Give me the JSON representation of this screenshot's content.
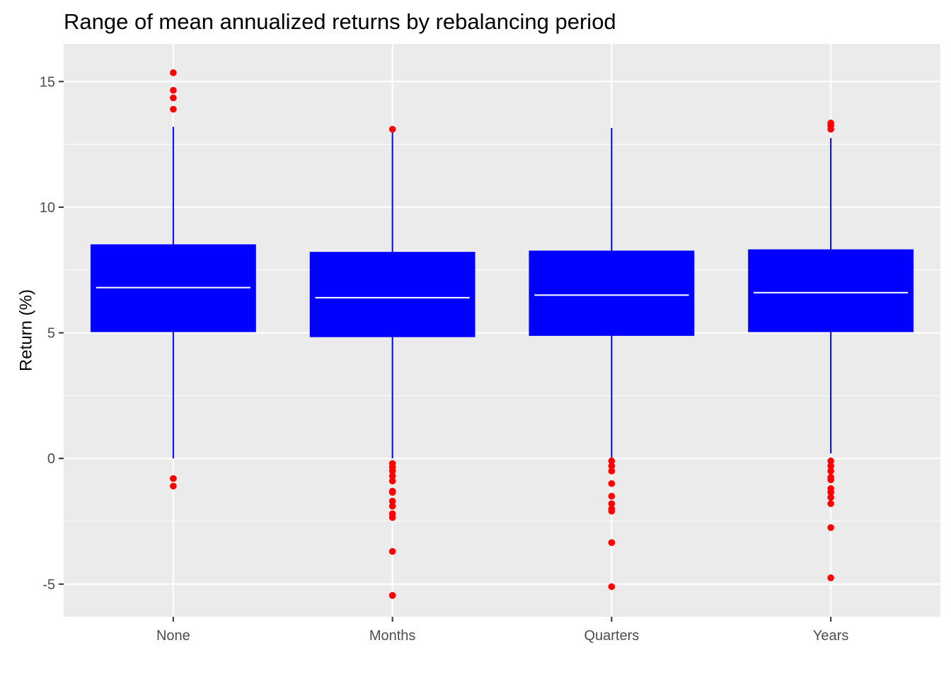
{
  "chart_data": {
    "type": "boxplot",
    "title": "Range of mean annualized returns by rebalancing period",
    "xlabel": "",
    "ylabel": "Return (%)",
    "ylim": [
      -6.3,
      16.5
    ],
    "yticks": [
      -5,
      0,
      5,
      10,
      15
    ],
    "ytick_labels": [
      "-5",
      "0",
      "5",
      "10",
      "15"
    ],
    "grid": true,
    "legend": "none",
    "colors": {
      "panel": "#ebebeb",
      "grid": "#ffffff",
      "box": "#0000ff",
      "median": "#ffffff",
      "whisker": "#0000ff",
      "outlier": "#ff0000",
      "tick": "#333333"
    },
    "categories": [
      "None",
      "Months",
      "Quarters",
      "Years"
    ],
    "boxes": [
      {
        "category": "None",
        "whisker_low": 0.0,
        "q1": 5.05,
        "median": 6.8,
        "q3": 8.5,
        "whisker_high": 13.2,
        "outliers": [
          15.35,
          14.65,
          14.35,
          13.9,
          -0.8,
          -1.1
        ]
      },
      {
        "category": "Months",
        "whisker_low": 0.0,
        "q1": 4.85,
        "median": 6.4,
        "q3": 8.2,
        "whisker_high": 13.0,
        "outliers": [
          13.1,
          -0.2,
          -0.35,
          -0.5,
          -0.7,
          -0.9,
          -1.3,
          -1.35,
          -1.7,
          -1.9,
          -2.2,
          -2.35,
          -3.7,
          -5.45
        ]
      },
      {
        "category": "Quarters",
        "whisker_low": 0.0,
        "q1": 4.9,
        "median": 6.5,
        "q3": 8.25,
        "whisker_high": 13.15,
        "outliers": [
          -0.1,
          -0.3,
          -0.5,
          -1.0,
          -1.5,
          -1.8,
          -2.0,
          -2.1,
          -3.35,
          -5.1
        ]
      },
      {
        "category": "Years",
        "whisker_low": 0.2,
        "q1": 5.05,
        "median": 6.6,
        "q3": 8.3,
        "whisker_high": 12.75,
        "outliers": [
          13.35,
          13.25,
          13.1,
          -0.1,
          -0.3,
          -0.5,
          -0.75,
          -0.85,
          -1.2,
          -1.35,
          -1.55,
          -1.8,
          -2.75,
          -4.75
        ]
      }
    ]
  }
}
